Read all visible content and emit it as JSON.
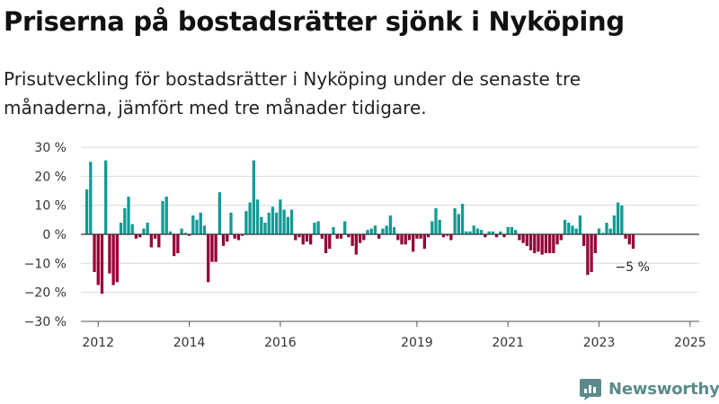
{
  "title": "Priserna på bostadsrätter sjönk i Nyköping",
  "subtitle": "Prisutveckling för bostadsrätter i Nyköping under de senaste tre månaderna, jämfört med tre månader tidigare.",
  "brand": {
    "name": "Newsworthy",
    "icon": "newsworthy-logo-icon"
  },
  "colors": {
    "positive": "#119b95",
    "negative": "#960038",
    "grid": "#d9d9d9",
    "axis": "#333333"
  },
  "chart_data": {
    "type": "bar",
    "unit": "%",
    "yticks": [
      30,
      20,
      10,
      0,
      -10,
      -20,
      -30
    ],
    "ytick_labels": [
      "30 %",
      "20 %",
      "10 %",
      "0 %",
      "−10 %",
      "−20 %",
      "−30 %"
    ],
    "ylim": [
      -30,
      30
    ],
    "x_start_year": 2012,
    "xlim": [
      2011.62,
      2025.2
    ],
    "xticks": [
      2012,
      2014,
      2016,
      2019,
      2021,
      2023,
      2025
    ],
    "xtick_labels": [
      "2012",
      "2014",
      "2016",
      "2019",
      "2021",
      "2023",
      "2025"
    ],
    "grid": true,
    "annotation": {
      "text": "−5 %",
      "target": "last"
    },
    "values": [
      15.5,
      25.0,
      -13.0,
      -17.5,
      -20.5,
      25.5,
      -13.5,
      -17.5,
      -16.5,
      4.0,
      9.0,
      13.0,
      3.5,
      -1.5,
      -1.0,
      2.0,
      4.0,
      -4.5,
      -1.5,
      -4.5,
      11.5,
      13.0,
      1.0,
      -7.5,
      -6.5,
      2.0,
      0.5,
      -0.5,
      6.5,
      5.0,
      7.5,
      3.0,
      -16.5,
      -9.5,
      -9.5,
      14.5,
      -4.0,
      -2.5,
      7.5,
      -1.5,
      -2.0,
      -0.5,
      8.0,
      11.0,
      25.5,
      12.0,
      6.0,
      4.0,
      7.5,
      9.5,
      7.5,
      12.0,
      8.5,
      6.0,
      8.5,
      -2.0,
      -1.0,
      -3.5,
      -2.5,
      -3.5,
      4.0,
      4.5,
      -1.5,
      -6.5,
      -5.0,
      2.5,
      -1.5,
      -1.5,
      4.5,
      -1.0,
      -4.0,
      -7.0,
      -3.0,
      -2.0,
      1.5,
      2.0,
      3.0,
      -1.5,
      2.0,
      3.0,
      6.5,
      2.5,
      -2.0,
      -3.5,
      -3.5,
      -2.0,
      -6.0,
      -1.5,
      -1.5,
      -5.0,
      -1.0,
      4.5,
      9.0,
      5.0,
      -1.0,
      -0.5,
      -2.0,
      9.0,
      7.0,
      10.5,
      1.0,
      1.0,
      3.0,
      2.0,
      1.5,
      -1.0,
      1.0,
      1.0,
      -1.0,
      1.0,
      -1.0,
      2.5,
      2.5,
      1.5,
      -2.0,
      -3.0,
      -4.0,
      -5.5,
      -6.5,
      -6.0,
      -7.0,
      -6.5,
      -6.5,
      -6.5,
      -3.5,
      -2.0,
      5.0,
      4.0,
      3.0,
      2.0,
      6.5,
      -4.0,
      -14.0,
      -13.0,
      -6.5,
      2.0,
      0.5,
      4.0,
      2.0,
      6.5,
      11.0,
      10.0,
      -1.5,
      -3.5,
      -5.0
    ]
  }
}
